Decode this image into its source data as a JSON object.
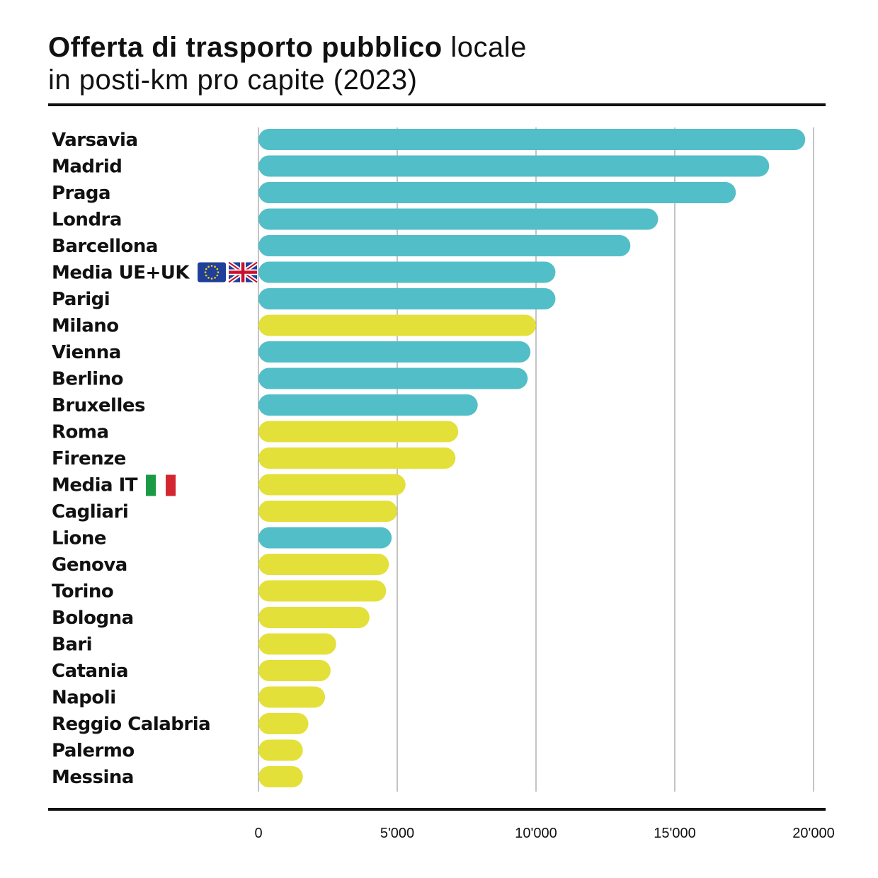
{
  "title": {
    "bold": "Offerta di trasporto pubblico",
    "light": "locale",
    "line2": "in posti-km pro capite (2023)"
  },
  "colors": {
    "other_cities": "#52bec8",
    "italy": "#e4e03a",
    "grid": "#888888"
  },
  "chart_data": {
    "type": "bar",
    "orientation": "horizontal",
    "xlim": [
      0,
      20000
    ],
    "xticks": [
      0,
      5000,
      10000,
      15000,
      20000
    ],
    "xtick_labels": [
      "0",
      "5'000",
      "10'000",
      "15'000",
      "20'000"
    ],
    "grid": true,
    "categories": [
      "Varsavia",
      "Madrid",
      "Praga",
      "Londra",
      "Barcellona",
      "Media UE+UK",
      "Parigi",
      "Milano",
      "Vienna",
      "Berlino",
      "Bruxelles",
      "Roma",
      "Firenze",
      "Media IT",
      "Cagliari",
      "Lione",
      "Genova",
      "Torino",
      "Bologna",
      "Bari",
      "Catania",
      "Napoli",
      "Reggio Calabria",
      "Palermo",
      "Messina"
    ],
    "values": [
      19700,
      18400,
      17200,
      14400,
      13400,
      10700,
      10700,
      10000,
      9800,
      9700,
      7900,
      7200,
      7100,
      5300,
      5000,
      4800,
      4700,
      4600,
      4000,
      2800,
      2600,
      2400,
      1800,
      1600,
      1600
    ],
    "group": [
      "other",
      "other",
      "other",
      "other",
      "other",
      "other",
      "other",
      "italy",
      "other",
      "other",
      "other",
      "italy",
      "italy",
      "italy",
      "italy",
      "other",
      "italy",
      "italy",
      "italy",
      "italy",
      "italy",
      "italy",
      "italy",
      "italy",
      "italy"
    ],
    "flags": {
      "Media UE+UK": [
        "eu-flag-icon",
        "uk-flag-icon"
      ],
      "Media IT": [
        "italy-flag-icon"
      ]
    }
  }
}
